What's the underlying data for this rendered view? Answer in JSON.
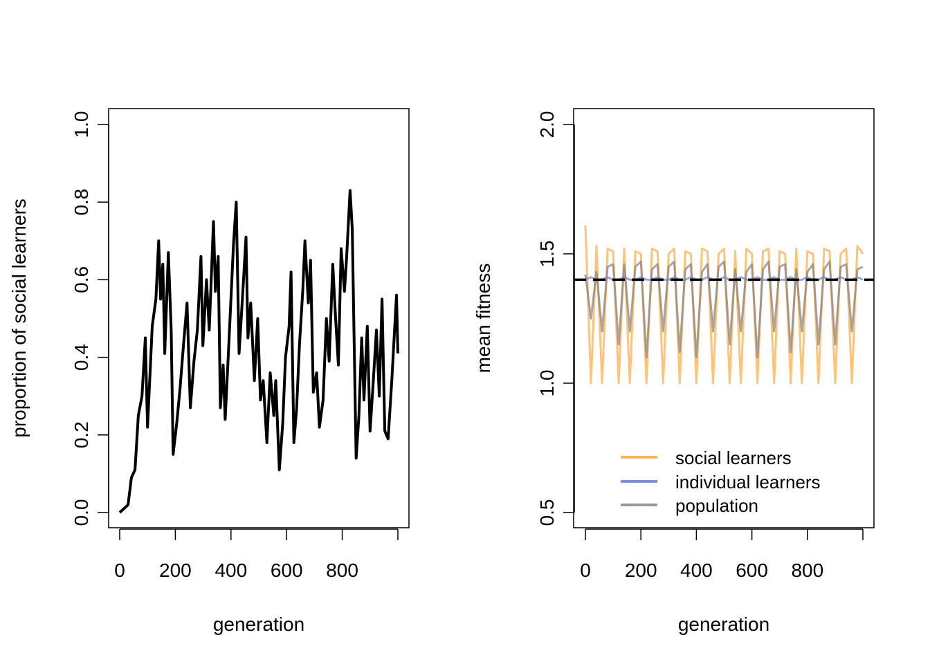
{
  "chart_data": [
    {
      "type": "line",
      "xlabel": "generation",
      "ylabel": "proportion of social learners",
      "xlim": [
        0,
        1000
      ],
      "ylim": [
        0,
        1
      ],
      "xticks": [
        0,
        200,
        400,
        600,
        800,
        1000
      ],
      "xtick_labels": [
        "0",
        "200",
        "400",
        "600",
        "800",
        ""
      ],
      "yticks": [
        0,
        0.2,
        0.4,
        0.6,
        0.8,
        1.0
      ],
      "ytick_labels": [
        "0.0",
        "0.2",
        "0.4",
        "0.6",
        "0.8",
        "1.0"
      ],
      "grid": false,
      "series": [
        {
          "color": "#000000",
          "x": [
            0,
            30,
            42,
            55,
            67,
            80,
            92,
            100,
            117,
            130,
            140,
            147,
            155,
            162,
            175,
            185,
            192,
            205,
            217,
            229,
            242,
            254,
            267,
            279,
            292,
            299,
            312,
            322,
            337,
            344,
            354,
            362,
            372,
            379,
            392,
            409,
            419,
            429,
            441,
            454,
            461,
            471,
            484,
            496,
            506,
            516,
            529,
            541,
            554,
            561,
            574,
            586,
            596,
            609,
            616,
            626,
            636,
            646,
            658,
            666,
            678,
            686,
            696,
            708,
            718,
            731,
            743,
            753,
            766,
            776,
            786,
            796,
            808,
            816,
            828,
            836,
            843,
            850,
            860,
            870,
            878,
            890,
            900,
            910,
            923,
            933,
            943,
            953,
            965,
            978,
            995,
            1000
          ],
          "y": [
            0,
            0.02,
            0.09,
            0.11,
            0.25,
            0.3,
            0.45,
            0.22,
            0.48,
            0.55,
            0.7,
            0.55,
            0.64,
            0.41,
            0.67,
            0.47,
            0.15,
            0.23,
            0.32,
            0.43,
            0.54,
            0.27,
            0.39,
            0.47,
            0.66,
            0.43,
            0.6,
            0.47,
            0.75,
            0.57,
            0.66,
            0.27,
            0.38,
            0.24,
            0.43,
            0.69,
            0.8,
            0.41,
            0.55,
            0.71,
            0.45,
            0.54,
            0.34,
            0.5,
            0.29,
            0.34,
            0.18,
            0.36,
            0.25,
            0.34,
            0.11,
            0.23,
            0.4,
            0.48,
            0.62,
            0.18,
            0.27,
            0.43,
            0.57,
            0.7,
            0.54,
            0.65,
            0.31,
            0.36,
            0.22,
            0.29,
            0.5,
            0.39,
            0.64,
            0.5,
            0.38,
            0.68,
            0.57,
            0.66,
            0.83,
            0.73,
            0.43,
            0.14,
            0.25,
            0.45,
            0.29,
            0.48,
            0.21,
            0.32,
            0.47,
            0.3,
            0.55,
            0.21,
            0.19,
            0.34,
            0.56,
            0.41
          ]
        }
      ]
    },
    {
      "type": "line",
      "xlabel": "generation",
      "ylabel": "mean fitness",
      "xlim": [
        0,
        1000
      ],
      "ylim": [
        0.5,
        2.0
      ],
      "xticks": [
        0,
        200,
        400,
        600,
        800,
        1000
      ],
      "xtick_labels": [
        "0",
        "200",
        "400",
        "600",
        "800",
        ""
      ],
      "yticks": [
        0.5,
        1.0,
        1.5,
        2.0
      ],
      "ytick_labels": [
        "0.5",
        "1.0",
        "1.5",
        "2.0"
      ],
      "grid": false,
      "legend": "bottom-right",
      "hline": {
        "y": 1.4,
        "style": "dashed",
        "color": "#000000"
      },
      "x": [
        0,
        20,
        40,
        60,
        80,
        100,
        120,
        140,
        160,
        180,
        200,
        220,
        240,
        260,
        280,
        300,
        320,
        340,
        360,
        380,
        400,
        420,
        440,
        460,
        480,
        500,
        520,
        540,
        560,
        580,
        600,
        620,
        640,
        660,
        680,
        700,
        720,
        740,
        760,
        780,
        800,
        820,
        840,
        860,
        880,
        900,
        920,
        940,
        960,
        980,
        1000
      ],
      "series": [
        {
          "name": "social learners",
          "color": "#FFA940",
          "values": [
            1.61,
            1.0,
            1.53,
            1.0,
            1.52,
            1.51,
            1.0,
            1.52,
            1.0,
            1.51,
            1.5,
            1.0,
            1.52,
            1.51,
            1.0,
            1.5,
            1.52,
            1.0,
            1.51,
            1.5,
            1.0,
            1.52,
            1.51,
            1.0,
            1.5,
            1.52,
            1.0,
            1.51,
            1.0,
            1.52,
            1.5,
            1.0,
            1.51,
            1.52,
            1.0,
            1.51,
            1.5,
            1.0,
            1.52,
            1.0,
            1.51,
            1.5,
            1.0,
            1.52,
            1.51,
            1.0,
            1.5,
            1.52,
            1.0,
            1.53,
            1.5
          ]
        },
        {
          "name": "individual learners",
          "color": "#7B8FE0",
          "values": [
            1.4,
            1.41,
            1.4,
            1.4,
            1.41,
            1.4,
            1.4,
            1.41,
            1.4,
            1.4,
            1.41,
            1.4,
            1.4,
            1.41,
            1.4,
            1.4,
            1.41,
            1.4,
            1.4,
            1.41,
            1.4,
            1.4,
            1.41,
            1.4,
            1.4,
            1.41,
            1.4,
            1.4,
            1.41,
            1.4,
            1.4,
            1.41,
            1.4,
            1.4,
            1.41,
            1.4,
            1.4,
            1.41,
            1.4,
            1.4,
            1.41,
            1.4,
            1.4,
            1.41,
            1.4,
            1.4,
            1.41,
            1.4,
            1.4,
            1.41,
            1.4
          ]
        },
        {
          "name": "population",
          "color": "#808080",
          "values": [
            1.42,
            1.25,
            1.43,
            1.2,
            1.45,
            1.46,
            1.15,
            1.46,
            1.2,
            1.45,
            1.47,
            1.1,
            1.44,
            1.46,
            1.2,
            1.45,
            1.47,
            1.12,
            1.44,
            1.46,
            1.1,
            1.43,
            1.46,
            1.2,
            1.45,
            1.47,
            1.15,
            1.44,
            1.2,
            1.43,
            1.46,
            1.1,
            1.44,
            1.47,
            1.2,
            1.45,
            1.46,
            1.12,
            1.44,
            1.2,
            1.43,
            1.46,
            1.15,
            1.44,
            1.47,
            1.15,
            1.45,
            1.46,
            1.2,
            1.44,
            1.45
          ]
        }
      ]
    }
  ]
}
